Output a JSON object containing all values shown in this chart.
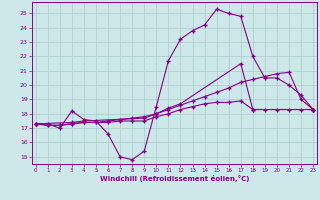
{
  "xlabel": "Windchill (Refroidissement éolien,°C)",
  "background_color": "#cce8e8",
  "line_color": "#880088",
  "grid_color": "#aacccc",
  "x_ticks": [
    0,
    1,
    2,
    3,
    4,
    5,
    6,
    7,
    8,
    9,
    10,
    11,
    12,
    13,
    14,
    15,
    16,
    17,
    18,
    19,
    20,
    21,
    22,
    23
  ],
  "y_ticks": [
    15,
    16,
    17,
    18,
    19,
    20,
    21,
    22,
    23,
    24,
    25
  ],
  "xlim": [
    -0.3,
    23.3
  ],
  "ylim": [
    14.5,
    25.8
  ],
  "line1_x": [
    0,
    1,
    2,
    3,
    4,
    5,
    6,
    7,
    8,
    9,
    10,
    11,
    12,
    13,
    14,
    15,
    16,
    17,
    18,
    19,
    20,
    21,
    22,
    23
  ],
  "line1_y": [
    17.3,
    17.3,
    17.0,
    18.2,
    17.6,
    17.5,
    16.6,
    15.0,
    14.8,
    15.4,
    18.5,
    21.7,
    23.2,
    23.8,
    24.2,
    25.3,
    25.0,
    24.8,
    22.0,
    20.5,
    20.5,
    20.0,
    19.3,
    18.3
  ],
  "line2_x": [
    0,
    1,
    2,
    3,
    4,
    5,
    6,
    7,
    8,
    9,
    10,
    11,
    12,
    13,
    14,
    15,
    16,
    17,
    18,
    19,
    20,
    21,
    22,
    23
  ],
  "line2_y": [
    17.3,
    17.2,
    17.2,
    17.3,
    17.4,
    17.4,
    17.4,
    17.5,
    17.5,
    17.5,
    17.8,
    18.0,
    18.3,
    18.5,
    18.7,
    18.8,
    18.8,
    18.9,
    18.3,
    18.3,
    18.3,
    18.3,
    18.3,
    18.3
  ],
  "line3_x": [
    0,
    1,
    2,
    3,
    4,
    5,
    6,
    7,
    8,
    9,
    10,
    11,
    12,
    13,
    14,
    15,
    16,
    17,
    18,
    19,
    20,
    21,
    22,
    23
  ],
  "line3_y": [
    17.3,
    17.2,
    17.2,
    17.3,
    17.4,
    17.4,
    17.5,
    17.6,
    17.7,
    17.8,
    18.0,
    18.3,
    18.6,
    18.9,
    19.2,
    19.5,
    19.8,
    20.2,
    20.4,
    20.6,
    20.8,
    20.9,
    19.0,
    18.3
  ],
  "line4_x": [
    0,
    3,
    4,
    9,
    10,
    11,
    12,
    17,
    18,
    23
  ],
  "line4_y": [
    17.3,
    17.4,
    17.5,
    17.7,
    18.0,
    18.4,
    18.7,
    21.5,
    18.3,
    18.3
  ]
}
